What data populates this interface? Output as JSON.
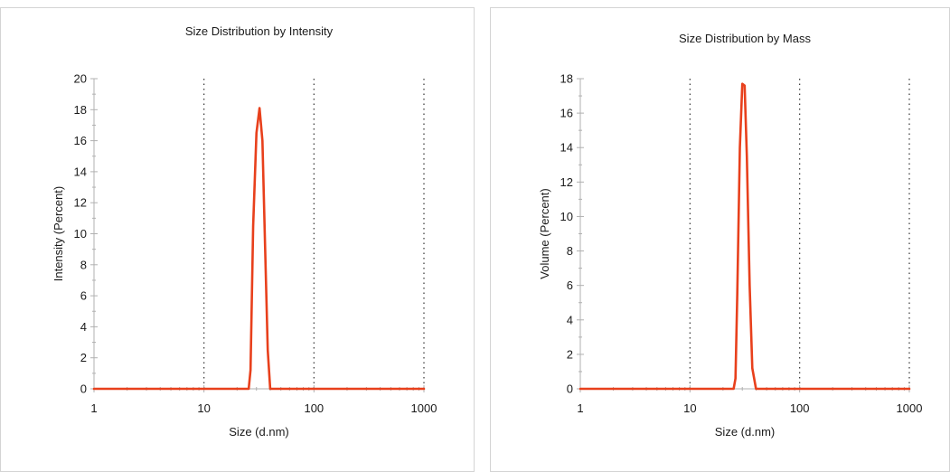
{
  "colors": {
    "series": "#e8401c"
  },
  "chart_data": [
    {
      "type": "line",
      "title": "Size Distribution by Intensity",
      "xlabel": "Size (d.nm)",
      "ylabel": "Intensity (Percent)",
      "xscale": "log",
      "xlim": [
        1,
        1000
      ],
      "ylim": [
        0,
        20
      ],
      "xticks": [
        1,
        10,
        100,
        1000
      ],
      "xtick_labels": [
        "1",
        "10",
        "100",
        "1000"
      ],
      "yticks": [
        0,
        2,
        4,
        6,
        8,
        10,
        12,
        14,
        16,
        18,
        20
      ],
      "ytick_labels": [
        "0",
        "2",
        "4",
        "6",
        "8",
        "10",
        "12",
        "14",
        "16",
        "18",
        "20"
      ],
      "grid": "vertical dotted at major x ticks",
      "series": [
        {
          "x": [
            1,
            20,
            25.5,
            26.5,
            28,
            30,
            32,
            34,
            36,
            38,
            40,
            1000
          ],
          "values": [
            0,
            0,
            0,
            1.2,
            10.5,
            16.5,
            18.1,
            16.0,
            9.0,
            2.5,
            0,
            0
          ]
        }
      ]
    },
    {
      "type": "line",
      "title": "Size Distribution by Mass",
      "xlabel": "Size (d.nm)",
      "ylabel": "Volume (Percent)",
      "xscale": "log",
      "xlim": [
        1,
        1000
      ],
      "ylim": [
        0,
        18
      ],
      "xticks": [
        1,
        10,
        100,
        1000
      ],
      "xtick_labels": [
        "1",
        "10",
        "100",
        "1000"
      ],
      "yticks": [
        0,
        2,
        4,
        6,
        8,
        10,
        12,
        14,
        16,
        18
      ],
      "ytick_labels": [
        "0",
        "2",
        "4",
        "6",
        "8",
        "10",
        "12",
        "14",
        "16",
        "18"
      ],
      "grid": "vertical dotted at major x ticks",
      "series": [
        {
          "x": [
            1,
            20,
            25,
            26,
            27,
            28.5,
            30,
            31.5,
            33,
            35,
            37,
            40,
            1000
          ],
          "values": [
            0,
            0,
            0,
            0.6,
            5.5,
            14.0,
            17.7,
            17.6,
            13.5,
            6.0,
            1.2,
            0,
            0
          ]
        }
      ]
    }
  ]
}
